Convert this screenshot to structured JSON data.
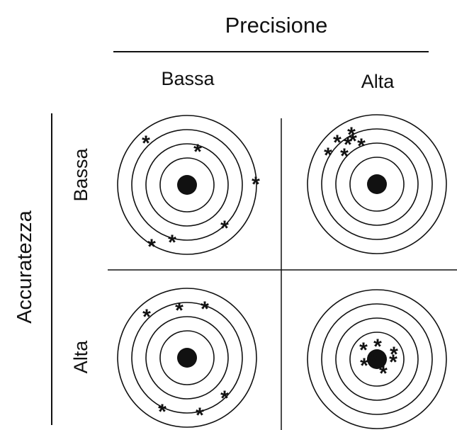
{
  "figure": {
    "column_header": "Precisione",
    "row_header": "Accuratezza",
    "columns": [
      "Bassa",
      "Alta"
    ],
    "rows": [
      "Bassa",
      "Alta"
    ],
    "mark_glyph": "*",
    "panels": [
      {
        "id": "low-accuracy-low-precision",
        "row": "Bassa",
        "column": "Bassa",
        "hits": 6
      },
      {
        "id": "low-accuracy-high-precision",
        "row": "Bassa",
        "column": "Alta",
        "hits": 7
      },
      {
        "id": "high-accuracy-low-precision",
        "row": "Alta",
        "column": "Bassa",
        "hits": 6
      },
      {
        "id": "high-accuracy-high-precision",
        "row": "Alta",
        "column": "Alta",
        "hits": 7
      }
    ]
  }
}
